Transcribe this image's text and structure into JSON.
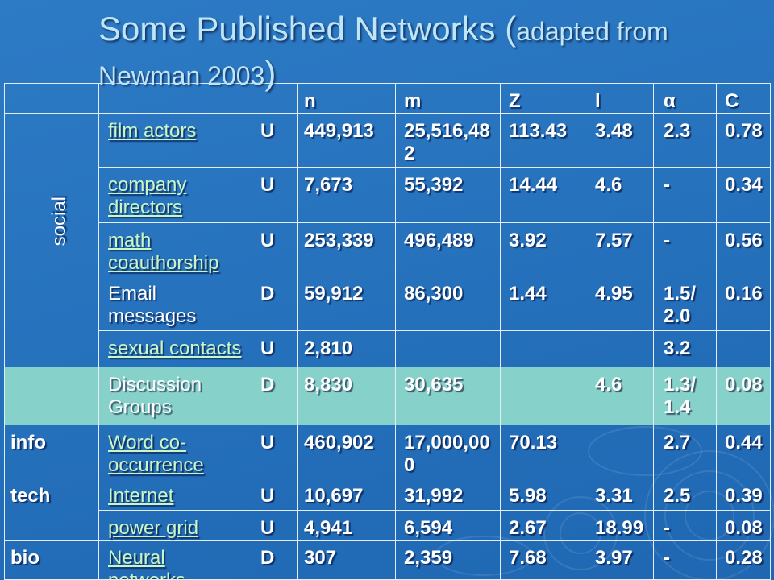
{
  "slide": {
    "title_main": "Some Published Networks (",
    "title_sub": "adapted from Newman 2003",
    "title_close": ")"
  },
  "colors": {
    "background": "#2672bd",
    "title": "#bfe5f8",
    "text": "#ffffff",
    "link": "#c9f6c3",
    "highlight_row": "#86d1c9",
    "grid": "#e2edf8"
  },
  "table": {
    "columns": [
      "n",
      "m",
      "Z",
      "l",
      "α",
      "C"
    ],
    "groups": [
      {
        "category": "social",
        "rows": [
          {
            "name": "film actors",
            "link": true,
            "type": "U",
            "n": "449,913",
            "m": "25,516,482",
            "Z": "113.43",
            "l": "3.48",
            "alpha": "2.3",
            "C": "0.78"
          },
          {
            "name": "company directors",
            "link": true,
            "type": "U",
            "n": "7,673",
            "m": "55,392",
            "Z": "14.44",
            "l": "4.6",
            "alpha": "-",
            "C": "0.34"
          },
          {
            "name": "math coauthorship",
            "link": true,
            "type": "U",
            "n": "253,339",
            "m": "496,489",
            "Z": "3.92",
            "l": "7.57",
            "alpha": "-",
            "C": "0.56"
          },
          {
            "name": "Email messages",
            "link": false,
            "type": "D",
            "n": "59,912",
            "m": "86,300",
            "Z": "1.44",
            "l": "4.95",
            "alpha": "1.5/2.0",
            "C": "0.16"
          },
          {
            "name": "sexual contacts",
            "link": true,
            "type": "U",
            "n": "2,810",
            "alpha": "3.2"
          }
        ]
      },
      {
        "rows": [
          {
            "name": "Discussion Groups",
            "link": false,
            "highlight": true,
            "type": "D",
            "n": "8,830",
            "m": "30,635",
            "l": "4.6",
            "alpha": "1.3/1.4",
            "C": "0.08"
          }
        ]
      },
      {
        "category": "info",
        "rows": [
          {
            "name": "Word co-occurrence",
            "link": true,
            "type": "U",
            "n": "460,902",
            "m": "17,000,000",
            "Z": "70.13",
            "alpha": "2.7",
            "C": "0.44"
          }
        ]
      },
      {
        "category": "tech",
        "rows": [
          {
            "name": "Internet",
            "link": true,
            "type": "U",
            "n": "10,697",
            "m": "31,992",
            "Z": "5.98",
            "l": "3.31",
            "alpha": "2.5",
            "C": "0.39"
          },
          {
            "name": "power grid",
            "link": true,
            "type": "U",
            "n": "4,941",
            "m": "6,594",
            "Z": "2.67",
            "l": "18.99",
            "alpha": "-",
            "C": "0.08"
          }
        ]
      },
      {
        "category": "bio",
        "rows": [
          {
            "name": "Neural networks",
            "link": true,
            "type": "D",
            "n": "307",
            "m": "2,359",
            "Z": "7.68",
            "l": "3.97",
            "alpha": "-",
            "C": "0.28"
          }
        ]
      }
    ]
  }
}
